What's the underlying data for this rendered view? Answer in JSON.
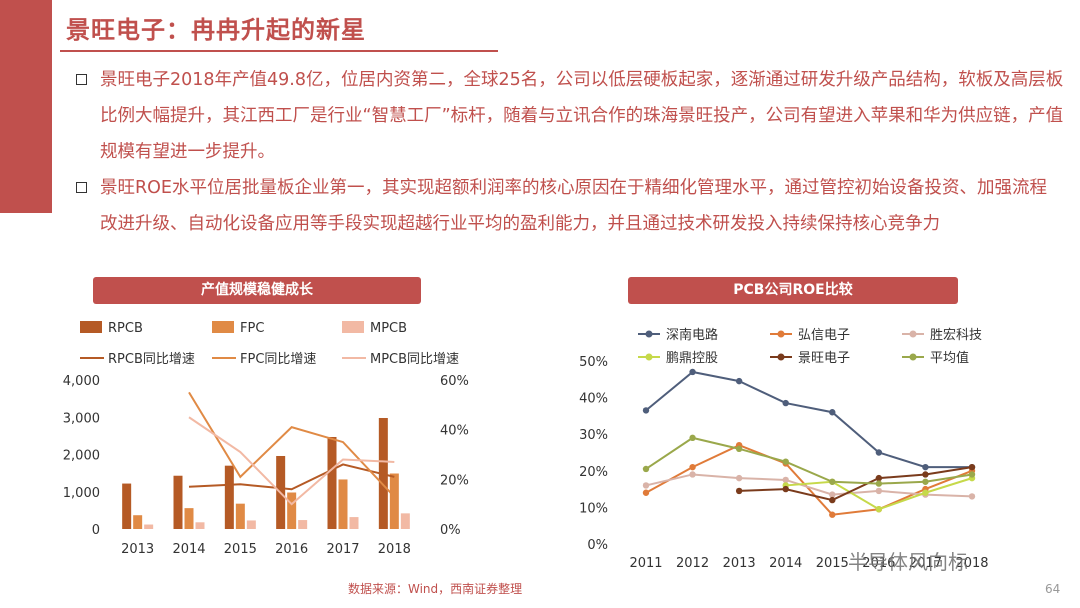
{
  "header": {
    "title": "景旺电子：冉冉升起的新星"
  },
  "bullets": [
    "景旺电子2018年产值49.8亿，位居内资第二，全球25名，公司以低层硬板起家，逐渐通过研发升级产品结构，软板及高层板比例大幅提升，其江西工厂是行业“智慧工厂”标杆，随着与立讯合作的珠海景旺投产，公司有望进入苹果和华为供应链，产值规模有望进一步提升。",
    "景旺ROE水平位居批量板企业第一，其实现超额利润率的核心原因在于精细化管理水平，通过管控初始设备投资、加强流程改进升级、自动化设备应用等手段实现超越行业平均的盈利能力，并且通过技术研发投入持续保持核心竞争力"
  ],
  "footer": {
    "source": "数据来源：Wind，西南证券整理",
    "page": "64",
    "watermark": "半导体风向标"
  },
  "colors": {
    "accent": "#c0504d",
    "rpcb": "#b55a25",
    "fpc": "#e08a45",
    "mpcb": "#f2b9a4",
    "sn": "#4f5e7b",
    "hx": "#e07b39",
    "sh": "#d9b3a8",
    "pd": "#c6d94a",
    "jw": "#7a3b1c",
    "avg": "#9aa84b"
  },
  "chart_data": [
    {
      "type": "bar",
      "title": "产值规模稳健成长",
      "categories": [
        "2013",
        "2014",
        "2015",
        "2016",
        "2017",
        "2018"
      ],
      "y_ticks": [
        "0",
        "1,000",
        "2,000",
        "3,000",
        "4,000"
      ],
      "y2_ticks": [
        "0%",
        "20%",
        "40%",
        "60%"
      ],
      "ylim": [
        0,
        4000
      ],
      "y2lim": [
        0,
        0.6
      ],
      "series": [
        {
          "name": "RPCB",
          "values": [
            1220,
            1430,
            1700,
            1960,
            2470,
            2980
          ]
        },
        {
          "name": "FPC",
          "values": [
            370,
            560,
            680,
            980,
            1330,
            1490
          ]
        },
        {
          "name": "MPCB",
          "values": [
            120,
            180,
            230,
            240,
            320,
            420
          ]
        }
      ],
      "lines": [
        {
          "name": "RPCB同比增速",
          "values": [
            null,
            0.17,
            0.18,
            0.16,
            0.26,
            0.21
          ]
        },
        {
          "name": "FPC同比增速",
          "values": [
            null,
            0.55,
            0.21,
            0.41,
            0.35,
            0.13
          ]
        },
        {
          "name": "MPCB同比增速",
          "values": [
            null,
            0.45,
            0.31,
            0.1,
            0.28,
            0.27
          ]
        }
      ]
    },
    {
      "type": "line",
      "title": "PCB公司ROE比较",
      "x": [
        "2011",
        "2012",
        "2013",
        "2014",
        "2015",
        "2016",
        "2017",
        "2018"
      ],
      "y_ticks": [
        "0%",
        "10%",
        "20%",
        "30%",
        "40%",
        "50%"
      ],
      "ylim": [
        0,
        0.5
      ],
      "series": [
        {
          "name": "深南电路",
          "values": [
            0.365,
            0.47,
            0.445,
            0.385,
            0.36,
            0.25,
            0.21,
            0.21
          ]
        },
        {
          "name": "弘信电子",
          "values": [
            0.14,
            0.21,
            0.27,
            0.22,
            0.08,
            0.095,
            0.15,
            0.2
          ]
        },
        {
          "name": "胜宏科技",
          "values": [
            0.16,
            0.19,
            0.18,
            0.175,
            0.135,
            0.145,
            0.135,
            0.13
          ]
        },
        {
          "name": "鹏鼎控股",
          "values": [
            null,
            null,
            null,
            0.16,
            0.17,
            0.095,
            0.14,
            0.18
          ]
        },
        {
          "name": "景旺电子",
          "values": [
            null,
            null,
            0.145,
            0.15,
            0.12,
            0.18,
            0.19,
            0.21
          ]
        },
        {
          "name": "平均值",
          "values": [
            0.205,
            0.29,
            0.26,
            0.225,
            0.17,
            0.165,
            0.17,
            0.19
          ]
        }
      ]
    }
  ]
}
